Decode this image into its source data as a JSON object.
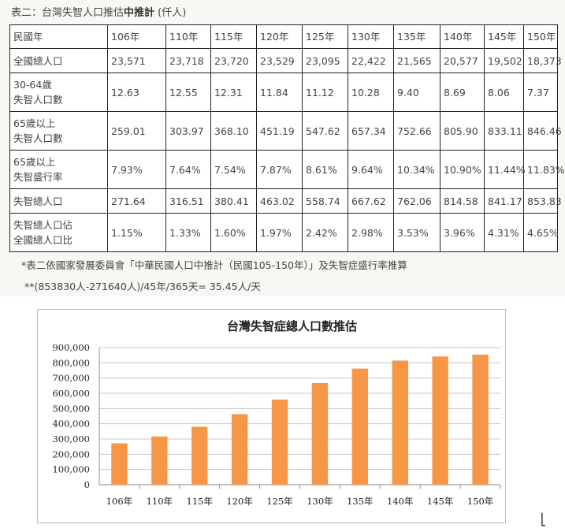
{
  "caption": {
    "prefix": "表二：台灣失智人口推估",
    "bold": "中推計",
    "suffix": " (仟人)"
  },
  "table": {
    "header": [
      "民國年",
      "106年",
      "110年",
      "115年",
      "120年",
      "125年",
      "130年",
      "135年",
      "140年",
      "145年",
      "150年"
    ],
    "rows": [
      {
        "label": [
          "全國總人口"
        ],
        "values": [
          "23,571",
          "23,718",
          "23,720",
          "23,529",
          "23,095",
          "22,422",
          "21,565",
          "20,577",
          "19,502",
          "18,373"
        ]
      },
      {
        "label": [
          "30-64歲",
          "失智人口數"
        ],
        "values": [
          "12.63",
          "12.55",
          "12.31",
          "11.84",
          "11.12",
          "10.28",
          "9.40",
          "8.69",
          "8.06",
          "7.37"
        ]
      },
      {
        "label": [
          "65歲以上",
          "失智人口數"
        ],
        "values": [
          "259.01",
          "303.97",
          "368.10",
          "451.19",
          "547.62",
          "657.34",
          "752.66",
          "805.90",
          "833.11",
          "846.46"
        ]
      },
      {
        "label": [
          "65歲以上",
          "失智盛行率"
        ],
        "values": [
          "7.93%",
          "7.64%",
          "7.54%",
          "7.87%",
          "8.61%",
          "9.64%",
          "10.34%",
          "10.90%",
          "11.44%",
          "11.83%"
        ]
      },
      {
        "label": [
          "失智總人口"
        ],
        "values": [
          "271.64",
          "316.51",
          "380.41",
          "463.02",
          "558.74",
          "667.62",
          "762.06",
          "814.58",
          "841.17",
          "853.83"
        ]
      },
      {
        "label": [
          "失智總人口佔",
          "全國總人口比"
        ],
        "values": [
          "1.15%",
          "1.33%",
          "1.60%",
          "1.97%",
          "2.42%",
          "2.98%",
          "3.53%",
          "3.96%",
          "4.31%",
          "4.65%"
        ]
      }
    ]
  },
  "notes": {
    "source": "*表二依國家發展委員會「中華民國人口中推計（民國105-150年）」及失智症盛行率推算",
    "formula": "**(853830人-271640人)/45年/365天= 35.45人/天"
  },
  "chart_data": {
    "type": "bar",
    "title": "台灣失智症總人口數推估",
    "categories": [
      "106年",
      "110年",
      "115年",
      "120年",
      "125年",
      "130年",
      "135年",
      "140年",
      "145年",
      "150年"
    ],
    "values": [
      271640,
      316510,
      380410,
      463020,
      558740,
      667620,
      762060,
      814580,
      841170,
      853830
    ],
    "ylim": [
      0,
      900000
    ],
    "yticks": [
      0,
      100000,
      200000,
      300000,
      400000,
      500000,
      600000,
      700000,
      800000,
      900000
    ],
    "ytick_labels": [
      "0",
      "100,000",
      "200,000",
      "300,000",
      "400,000",
      "500,000",
      "600,000",
      "700,000",
      "800,000",
      "900,000"
    ],
    "grid": true,
    "bar_color": "#f79646",
    "xlabel": "",
    "ylabel": ""
  },
  "cursor_glyph": "⎣"
}
